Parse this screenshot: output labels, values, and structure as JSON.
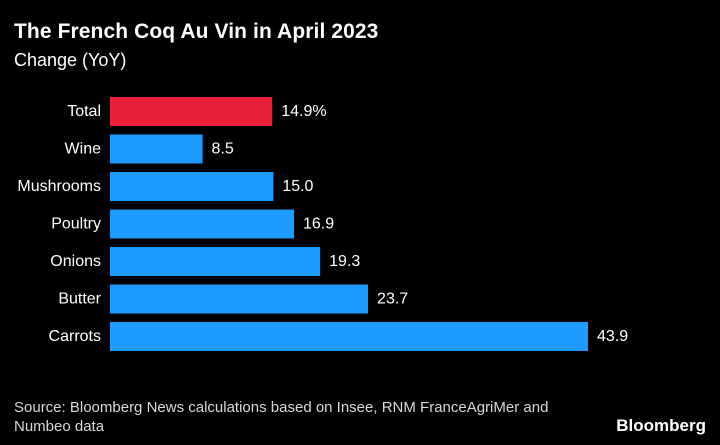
{
  "header": {
    "title": "The French Coq Au Vin in April 2023",
    "subtitle": "Change (YoY)"
  },
  "footer": {
    "source": "Source: Bloomberg News calculations based on Insee, RNM FranceAgriMer and Numbeo data",
    "brand": "Bloomberg"
  },
  "colors": {
    "background": "#000000",
    "highlight": "#e8203a",
    "bar": "#1f9bff",
    "text": "#ffffff"
  },
  "chart_data": {
    "type": "bar",
    "orientation": "horizontal",
    "title": "The French Coq Au Vin in April 2023",
    "subtitle": "Change (YoY)",
    "categories": [
      "Total",
      "Wine",
      "Mushrooms",
      "Poultry",
      "Onions",
      "Butter",
      "Carrots"
    ],
    "values": [
      14.9,
      8.5,
      15.0,
      16.9,
      19.3,
      23.7,
      43.9
    ],
    "value_labels": [
      "14.9%",
      "8.5",
      "15.0",
      "16.9",
      "19.3",
      "23.7",
      "43.9"
    ],
    "highlight_index": 0,
    "xlim": [
      0,
      43.9
    ],
    "grid": false,
    "legend": "none"
  }
}
